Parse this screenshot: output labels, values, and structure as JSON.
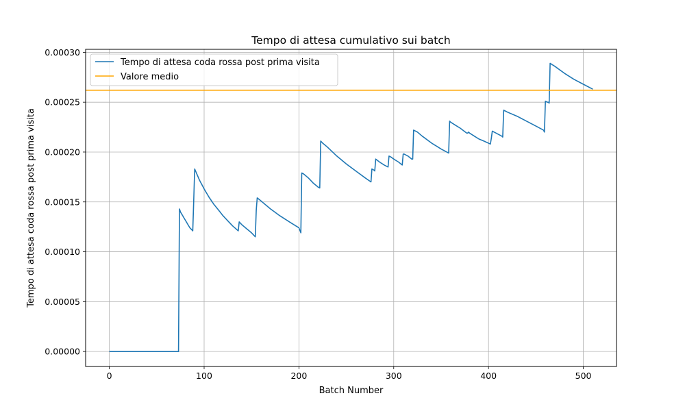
{
  "chart_data": {
    "type": "line",
    "title": "Tempo di attesa cumulativo sui batch",
    "xlabel": "Batch Number",
    "ylabel": "Tempo di attesa coda rossa post prima visita",
    "xlim": [
      -25,
      535
    ],
    "ylim": [
      -1.5e-05,
      0.000303
    ],
    "xticks": [
      0,
      100,
      200,
      300,
      400,
      500
    ],
    "xtick_labels": [
      "0",
      "100",
      "200",
      "300",
      "400",
      "500"
    ],
    "yticks": [
      0,
      5e-05,
      0.0001,
      0.00015,
      0.0002,
      0.00025,
      0.0003
    ],
    "ytick_labels": [
      "0.00000",
      "0.00005",
      "0.00010",
      "0.00015",
      "0.00020",
      "0.00025",
      "0.00030"
    ],
    "grid": true,
    "legend_position": "upper-left",
    "series": [
      {
        "name": "Tempo di attesa coda rossa post prima visita",
        "color": "#1f77b4",
        "x": [
          0,
          73,
          74,
          75,
          80,
          85,
          88,
          89,
          90,
          95,
          100,
          105,
          110,
          115,
          120,
          125,
          130,
          136,
          137,
          140,
          145,
          150,
          154,
          155,
          156,
          160,
          170,
          180,
          190,
          200,
          202,
          203,
          205,
          210,
          215,
          220,
          222,
          223,
          225,
          230,
          240,
          250,
          260,
          270,
          276,
          277,
          279,
          280,
          281,
          285,
          290,
          294,
          295,
          297,
          300,
          305,
          309,
          310,
          311,
          315,
          319,
          320,
          321,
          325,
          330,
          340,
          350,
          358,
          359,
          360,
          365,
          370,
          377,
          378,
          379,
          380,
          385,
          390,
          395,
          402,
          403,
          404,
          410,
          414,
          415,
          416,
          420,
          430,
          440,
          450,
          458,
          459,
          460,
          462,
          463,
          464,
          465,
          470,
          480,
          490,
          500,
          510
        ],
        "y": [
          0,
          0,
          0.000143,
          0.00014,
          0.000132,
          0.000124,
          0.000121,
          0.000151,
          0.000183,
          0.000172,
          0.000163,
          0.000155,
          0.000148,
          0.000142,
          0.000136,
          0.000131,
          0.000126,
          0.000121,
          0.00013,
          0.000127,
          0.000123,
          0.000119,
          0.000115,
          0.000142,
          0.000154,
          0.000151,
          0.000143,
          0.000136,
          0.00013,
          0.000124,
          0.000119,
          0.000179,
          0.000178,
          0.000174,
          0.000169,
          0.000165,
          0.000164,
          0.000211,
          0.000209,
          0.000205,
          0.000196,
          0.000188,
          0.000181,
          0.000174,
          0.00017,
          0.000183,
          0.000182,
          0.000181,
          0.000193,
          0.00019,
          0.000187,
          0.000185,
          0.000196,
          0.000195,
          0.000193,
          0.00019,
          0.000187,
          0.000198,
          0.000198,
          0.000196,
          0.000193,
          0.000193,
          0.000222,
          0.00022,
          0.000216,
          0.000209,
          0.000203,
          0.000199,
          0.000231,
          0.00023,
          0.000227,
          0.000224,
          0.000219,
          0.000219,
          0.00022,
          0.000219,
          0.000216,
          0.000213,
          0.000211,
          0.000208,
          0.000214,
          0.000221,
          0.000218,
          0.000216,
          0.000215,
          0.000242,
          0.00024,
          0.000236,
          0.000231,
          0.000226,
          0.000222,
          0.00022,
          0.000251,
          0.00025,
          0.00025,
          0.000249,
          0.000289,
          0.000286,
          0.000279,
          0.000273,
          0.000268,
          0.000263
        ]
      },
      {
        "name": "Valore medio",
        "color": "#ffa500",
        "type": "hline",
        "y": 0.000262
      }
    ]
  }
}
